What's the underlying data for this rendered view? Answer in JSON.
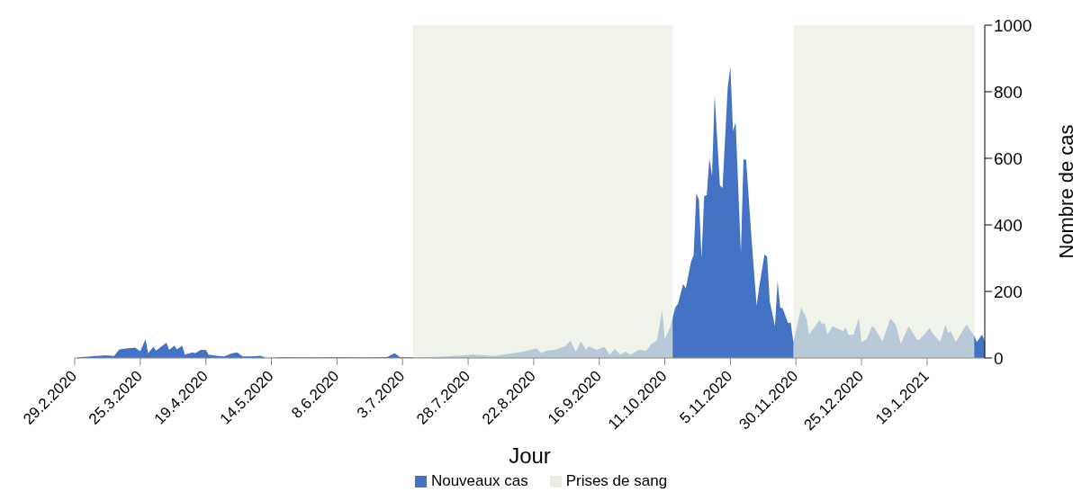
{
  "chart_data": {
    "type": "area",
    "xlabel": "Jour",
    "ylabel": "Nombre de cas",
    "xlim": [
      "2020-02-29",
      "2021-02-10"
    ],
    "xticks": [
      {
        "value": "2020-02-29",
        "label": "29.2.2020"
      },
      {
        "value": "2020-03-25",
        "label": "25.3.2020"
      },
      {
        "value": "2020-04-19",
        "label": "19.4.2020"
      },
      {
        "value": "2020-05-14",
        "label": "14.5.2020"
      },
      {
        "value": "2020-06-08",
        "label": "8.6.2020"
      },
      {
        "value": "2020-07-03",
        "label": "3.7.2020"
      },
      {
        "value": "2020-07-28",
        "label": "28.7.2020"
      },
      {
        "value": "2020-08-22",
        "label": "22.8.2020"
      },
      {
        "value": "2020-09-16",
        "label": "16.9.2020"
      },
      {
        "value": "2020-10-11",
        "label": "11.10.2020"
      },
      {
        "value": "2020-11-05",
        "label": "5.11.2020"
      },
      {
        "value": "2020-11-30",
        "label": "30.11.2020"
      },
      {
        "value": "2020-12-25",
        "label": "25.12.2020"
      },
      {
        "value": "2021-01-19",
        "label": "19.1.2021"
      }
    ],
    "ylim": [
      0,
      1000
    ],
    "yticks": [
      0,
      200,
      400,
      600,
      800,
      1000
    ],
    "grid": false,
    "legend": "bottom",
    "marker": "none",
    "bands": [
      {
        "axis": "x",
        "from": "2020-07-07",
        "to": "2020-10-14",
        "label": "Prises de sang",
        "color": "#eaeee0"
      },
      {
        "axis": "x",
        "from": "2020-11-29",
        "to": "2021-02-06",
        "color": "#eaeee0"
      }
    ],
    "series": [
      {
        "name": "Nouveaux cas",
        "color": "#4472c4",
        "x": [
          "2020-03-01",
          "2020-03-05",
          "2020-03-08",
          "2020-03-12",
          "2020-03-15",
          "2020-03-17",
          "2020-03-20",
          "2020-03-23",
          "2020-03-25",
          "2020-03-27",
          "2020-03-28",
          "2020-03-30",
          "2020-03-31",
          "2020-04-04",
          "2020-04-05",
          "2020-04-07",
          "2020-04-08",
          "2020-04-10",
          "2020-04-11",
          "2020-04-14",
          "2020-04-15",
          "2020-04-17",
          "2020-04-19",
          "2020-04-20",
          "2020-04-23",
          "2020-04-26",
          "2020-04-29",
          "2020-05-01",
          "2020-05-03",
          "2020-05-06",
          "2020-05-10",
          "2020-05-12",
          "2020-05-19",
          "2020-05-29",
          "2020-06-08",
          "2020-06-18",
          "2020-06-27",
          "2020-06-30",
          "2020-07-02",
          "2020-07-08",
          "2020-07-18",
          "2020-07-30",
          "2020-08-07",
          "2020-08-18",
          "2020-08-23",
          "2020-08-25",
          "2020-08-27",
          "2020-08-30",
          "2020-09-03",
          "2020-09-05",
          "2020-09-07",
          "2020-09-09",
          "2020-09-11",
          "2020-09-12",
          "2020-09-15",
          "2020-09-18",
          "2020-09-20",
          "2020-09-22",
          "2020-09-24",
          "2020-09-26",
          "2020-09-28",
          "2020-10-01",
          "2020-10-04",
          "2020-10-06",
          "2020-10-08",
          "2020-10-10",
          "2020-10-11",
          "2020-10-13",
          "2020-10-15",
          "2020-10-16",
          "2020-10-18",
          "2020-10-19",
          "2020-10-21",
          "2020-10-22",
          "2020-10-23",
          "2020-10-24",
          "2020-10-25",
          "2020-10-26",
          "2020-10-27",
          "2020-10-28",
          "2020-10-29",
          "2020-10-30",
          "2020-11-01",
          "2020-11-02",
          "2020-11-04",
          "2020-11-05",
          "2020-11-06",
          "2020-11-07",
          "2020-11-09",
          "2020-11-10",
          "2020-11-11",
          "2020-11-13",
          "2020-11-15",
          "2020-11-16",
          "2020-11-18",
          "2020-11-19",
          "2020-11-20",
          "2020-11-22",
          "2020-11-23",
          "2020-11-24",
          "2020-11-25",
          "2020-11-27",
          "2020-11-28",
          "2020-11-29",
          "2020-12-02",
          "2020-12-04",
          "2020-12-05",
          "2020-12-09",
          "2020-12-10",
          "2020-12-11",
          "2020-12-12",
          "2020-12-14",
          "2020-12-18",
          "2020-12-19",
          "2020-12-20",
          "2020-12-22",
          "2020-12-24",
          "2020-12-25",
          "2020-12-27",
          "2020-12-29",
          "2020-12-30",
          "2021-01-02",
          "2021-01-05",
          "2021-01-07",
          "2021-01-09",
          "2021-01-12",
          "2021-01-13",
          "2021-01-15",
          "2021-01-16",
          "2021-01-20",
          "2021-01-21",
          "2021-01-24",
          "2021-01-26",
          "2021-01-27",
          "2021-01-28",
          "2021-01-30",
          "2021-02-03",
          "2021-02-06",
          "2021-02-07",
          "2021-02-09",
          "2021-02-10"
        ],
        "values": [
          2,
          4,
          6,
          8,
          6,
          26,
          29,
          31,
          20,
          57,
          14,
          34,
          22,
          46,
          24,
          37,
          26,
          37,
          10,
          17,
          14,
          24,
          24,
          10,
          7,
          5,
          14,
          17,
          5,
          5,
          7,
          0,
          3,
          2,
          3,
          2,
          3,
          14,
          3,
          2,
          4,
          10,
          6,
          19,
          29,
          14,
          22,
          24,
          35,
          52,
          19,
          50,
          24,
          35,
          24,
          33,
          10,
          27,
          10,
          19,
          10,
          24,
          22,
          43,
          52,
          143,
          57,
          91,
          152,
          162,
          222,
          209,
          290,
          309,
          495,
          476,
          300,
          486,
          490,
          600,
          547,
          790,
          519,
          511,
          814,
          876,
          681,
          709,
          314,
          597,
          595,
          367,
          157,
          214,
          311,
          305,
          171,
          95,
          231,
          152,
          148,
          105,
          107,
          48,
          152,
          119,
          71,
          114,
          102,
          105,
          71,
          95,
          81,
          92,
          69,
          71,
          121,
          48,
          57,
          95,
          90,
          50,
          119,
          100,
          43,
          95,
          83,
          57,
          54,
          90,
          76,
          48,
          100,
          76,
          81,
          48,
          100,
          67,
          48,
          71,
          50
        ]
      }
    ]
  }
}
